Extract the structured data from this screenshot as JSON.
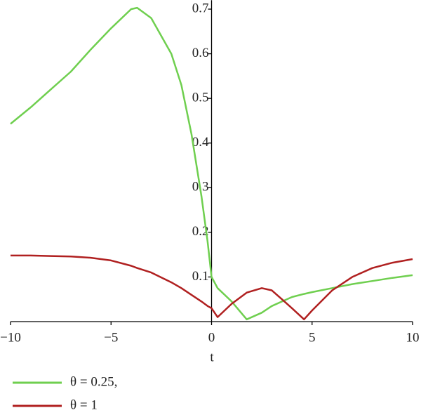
{
  "chart_data": {
    "type": "line",
    "x_label": "t",
    "x": [
      -10,
      -9,
      -8,
      -7,
      -6,
      -5,
      -4,
      -3.7,
      -3,
      -2,
      -1.5,
      -1,
      -0.5,
      -0.2,
      0,
      0.3,
      1,
      1.75,
      2.5,
      3,
      3.5,
      4,
      4.6,
      5,
      6,
      7,
      8,
      9,
      10
    ],
    "series": [
      {
        "name": "θ = 0.25,",
        "color": "#6fcf4f",
        "values": [
          0.443,
          0.48,
          0.52,
          0.56,
          0.61,
          0.657,
          0.7,
          0.703,
          0.68,
          0.6,
          0.53,
          0.42,
          0.28,
          0.18,
          0.1,
          0.075,
          0.045,
          0.005,
          0.02,
          0.035,
          0.045,
          0.055,
          0.062,
          0.066,
          0.075,
          0.084,
          0.091,
          0.098,
          0.104
        ]
      },
      {
        "name": "θ = 1",
        "color": "#b02020",
        "values": [
          0.148,
          0.148,
          0.147,
          0.146,
          0.143,
          0.137,
          0.125,
          0.12,
          0.11,
          0.088,
          0.075,
          0.06,
          0.045,
          0.035,
          0.03,
          0.01,
          0.04,
          0.065,
          0.075,
          0.07,
          0.05,
          0.03,
          0.005,
          0.025,
          0.07,
          0.1,
          0.12,
          0.132,
          0.14
        ]
      }
    ],
    "xlim": [
      -10,
      10
    ],
    "xticks": [
      {
        "value": -10,
        "label": "−10"
      },
      {
        "value": -5,
        "label": "−5"
      },
      0,
      5,
      10
    ],
    "ylim": [
      0,
      0.72
    ],
    "yticks": [
      0.1,
      0.2,
      0.3,
      0.4,
      0.5,
      0.6,
      0.7
    ]
  }
}
